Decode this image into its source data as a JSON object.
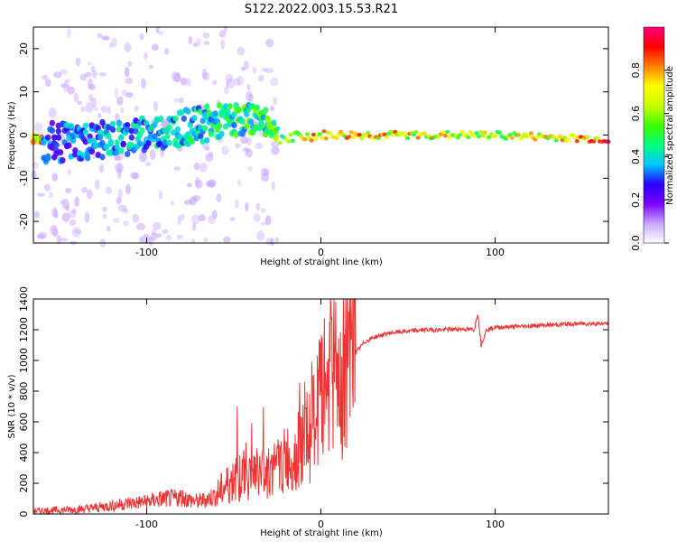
{
  "title": "S122.2022.003.15.53.R21",
  "chart_data": [
    {
      "type": "heatmap",
      "xlabel": "Height of straight line (km)",
      "ylabel": "Frequency (Hz)",
      "xlim": [
        -165,
        165
      ],
      "ylim": [
        -25,
        25
      ],
      "x_ticks": [
        -100,
        0,
        100
      ],
      "y_ticks": [
        -20,
        -10,
        0,
        10,
        20
      ],
      "colorbar": {
        "label": "Normalized spectral amplitude",
        "range": [
          0,
          1
        ],
        "ticks": [
          "0.0",
          "0.2",
          "0.4",
          "0.6",
          "0.8"
        ],
        "ticks_values": [
          0,
          0.2,
          0.4,
          0.6,
          0.8
        ],
        "colors": [
          "#ffffff",
          "#c9a6ff",
          "#7a00ff",
          "#2a00ff",
          "#00c8ff",
          "#00ff80",
          "#40ff00",
          "#c8ff00",
          "#ffff00",
          "#ff8000",
          "#ff0000",
          "#ff0080"
        ]
      },
      "signal_track": {
        "description_points": [
          {
            "x": -160,
            "center": -2,
            "spread": 6,
            "amp": 0.35
          },
          {
            "x": -120,
            "center": -1,
            "spread": 5,
            "amp": 0.4
          },
          {
            "x": -90,
            "center": 1,
            "spread": 5,
            "amp": 0.45
          },
          {
            "x": -60,
            "center": 3,
            "spread": 5,
            "amp": 0.5
          },
          {
            "x": -35,
            "center": 4,
            "spread": 4,
            "amp": 0.55
          },
          {
            "x": -20,
            "center": -1,
            "spread": 2,
            "amp": 0.6
          },
          {
            "x": 0,
            "center": 0,
            "spread": 1.2,
            "amp": 0.85
          },
          {
            "x": 50,
            "center": 0,
            "spread": 1,
            "amp": 0.8
          },
          {
            "x": 100,
            "center": 0,
            "spread": 1,
            "amp": 0.7
          },
          {
            "x": 165,
            "center": -1,
            "spread": 1,
            "amp": 0.9
          }
        ]
      }
    },
    {
      "type": "line",
      "xlabel": "Height of straight line (km)",
      "ylabel": "SNR (10 * v/v)",
      "xlim": [
        -165,
        165
      ],
      "ylim": [
        0,
        1400
      ],
      "x_ticks": [
        -100,
        0,
        100
      ],
      "y_ticks": [
        0,
        200,
        400,
        600,
        800,
        1000,
        1200,
        1400
      ],
      "series": [
        {
          "color": "#ee3333",
          "x": [
            -165,
            -150,
            -140,
            -130,
            -120,
            -110,
            -100,
            -95,
            -90,
            -85,
            -80,
            -75,
            -70,
            -65,
            -60,
            -55,
            -50,
            -45,
            -40,
            -35,
            -30,
            -25,
            -20,
            -15,
            -10,
            -5,
            0,
            5,
            10,
            15,
            20,
            25,
            30,
            40,
            50,
            60,
            70,
            80,
            88,
            90,
            92,
            95,
            100,
            110,
            120,
            130,
            140,
            150,
            165
          ],
          "y": [
            20,
            25,
            30,
            40,
            55,
            70,
            80,
            90,
            100,
            100,
            110,
            90,
            80,
            100,
            120,
            180,
            230,
            250,
            260,
            270,
            280,
            300,
            350,
            380,
            450,
            550,
            750,
            900,
            950,
            1000,
            1050,
            1120,
            1150,
            1180,
            1190,
            1200,
            1200,
            1205,
            1200,
            1310,
            1100,
            1200,
            1215,
            1220,
            1225,
            1230,
            1235,
            1240,
            1240
          ]
        }
      ]
    }
  ]
}
